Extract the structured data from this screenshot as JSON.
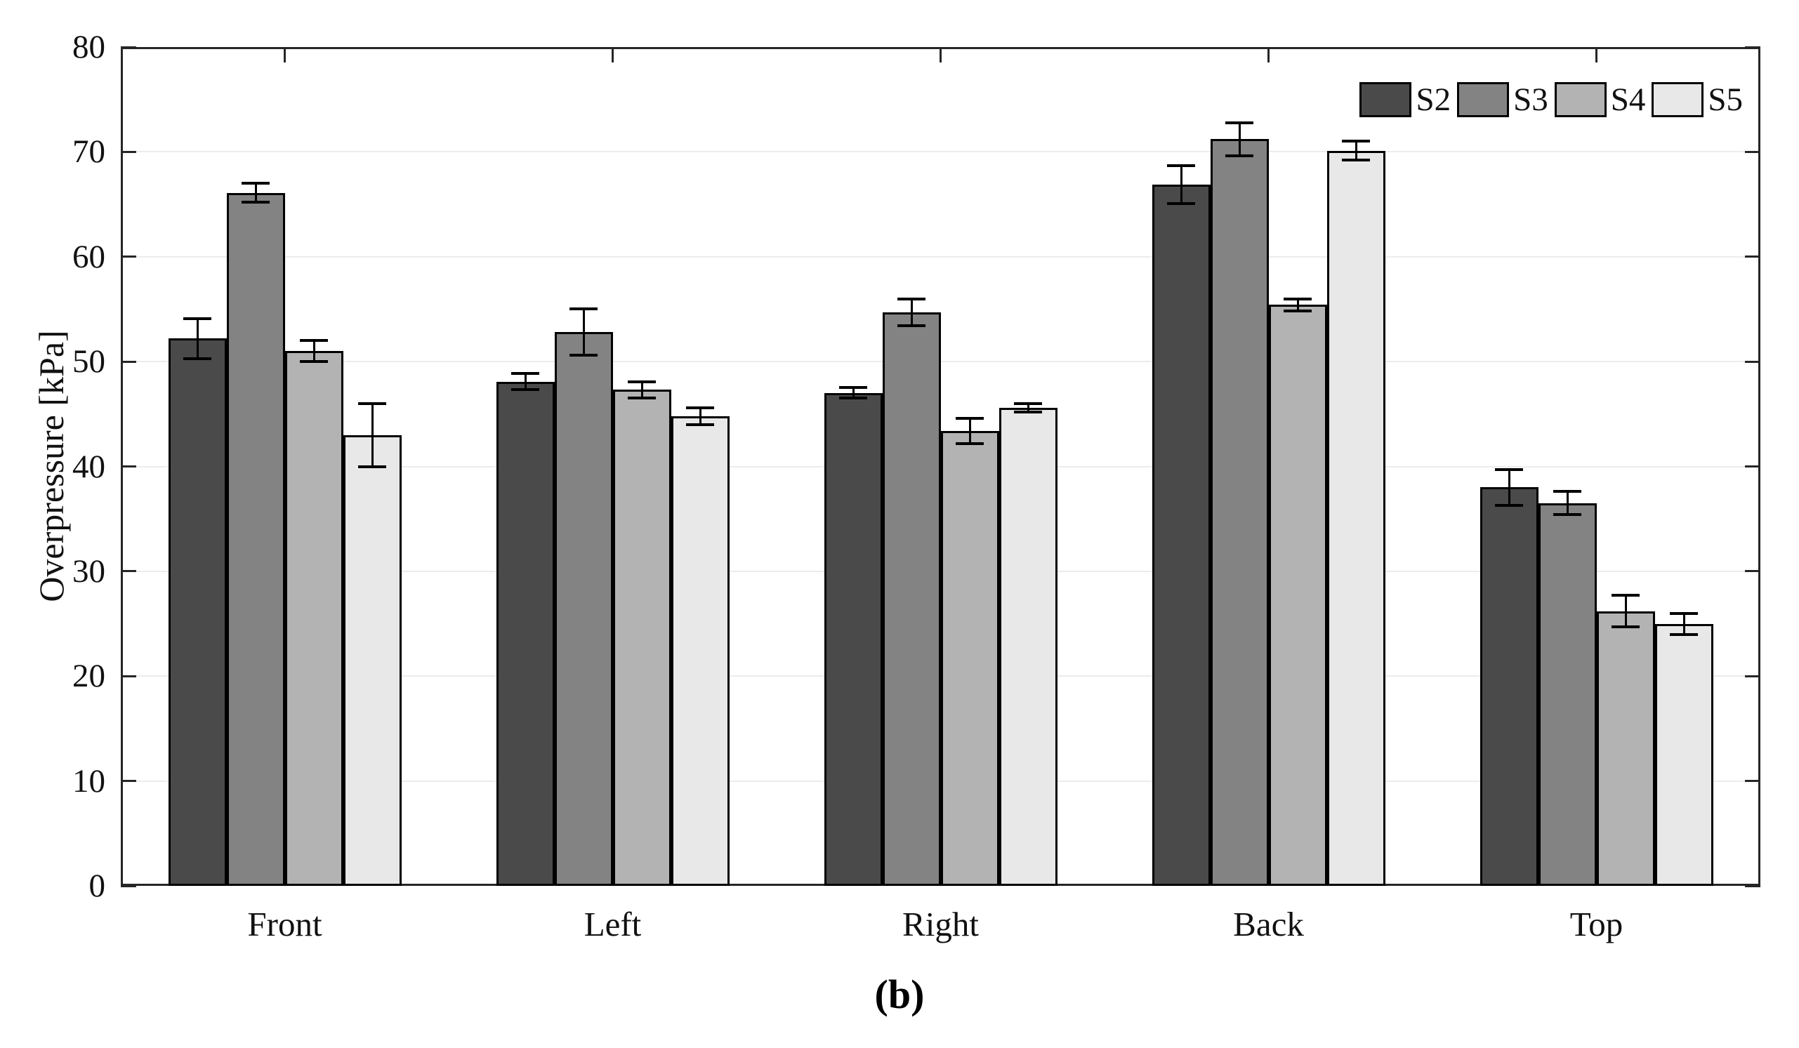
{
  "figure": {
    "caption": "(b)",
    "background": "#ffffff"
  },
  "chart_data": {
    "type": "bar",
    "title": "",
    "xlabel": "",
    "ylabel": "Overpressure [kPa]",
    "ylim": [
      0,
      80
    ],
    "yticks": [
      0,
      10,
      20,
      30,
      40,
      50,
      60,
      70,
      80
    ],
    "grid": "horizontal-gridlines-on",
    "legend_position": "top-right-inside",
    "categories": [
      "Front",
      "Left",
      "Right",
      "Back",
      "Top"
    ],
    "series": [
      {
        "name": "S2",
        "color": "#4a4a4a",
        "values": [
          52.2,
          48.1,
          47.0,
          66.9,
          38.0
        ],
        "errors": [
          1.9,
          0.8,
          0.5,
          1.8,
          1.7
        ]
      },
      {
        "name": "S3",
        "color": "#838383",
        "values": [
          66.1,
          52.8,
          54.7,
          71.2,
          36.5
        ],
        "errors": [
          0.9,
          2.2,
          1.3,
          1.6,
          1.1
        ]
      },
      {
        "name": "S4",
        "color": "#b3b3b3",
        "values": [
          51.0,
          47.3,
          43.4,
          55.4,
          26.2
        ],
        "errors": [
          1.0,
          0.8,
          1.2,
          0.6,
          1.5
        ]
      },
      {
        "name": "S5",
        "color": "#e8e8e8",
        "values": [
          43.0,
          44.8,
          45.6,
          70.1,
          25.0
        ],
        "errors": [
          3.0,
          0.8,
          0.4,
          0.9,
          1.0
        ]
      }
    ],
    "colors": {
      "bar_edge": "#000000",
      "error_bar": "#000000",
      "axis": "#262626",
      "grid": "#ececec",
      "text": "#111111"
    }
  }
}
